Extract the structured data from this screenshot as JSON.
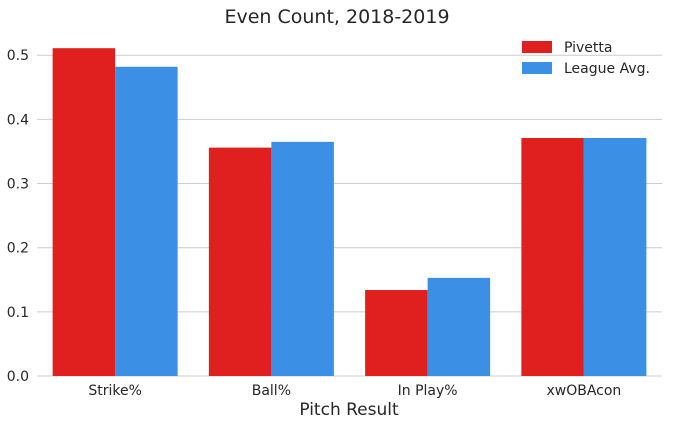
{
  "chart_data": {
    "type": "bar",
    "title": "Even Count, 2018-2019",
    "xlabel": "Pitch Result",
    "ylabel": "",
    "ylim": [
      0,
      0.53
    ],
    "yticks": [
      0.0,
      0.1,
      0.2,
      0.3,
      0.4,
      0.5
    ],
    "ytick_labels": [
      "0.0",
      "0.1",
      "0.2",
      "0.3",
      "0.4",
      "0.5"
    ],
    "grid": true,
    "legend_position": "top-right",
    "categories": [
      "Strike%",
      "Ball%",
      "In Play%",
      "xwOBAcon"
    ],
    "series": [
      {
        "name": "Pivetta",
        "color": "#e01f1f",
        "values": [
          0.511,
          0.356,
          0.134,
          0.371
        ]
      },
      {
        "name": "League Avg.",
        "color": "#3b8fe5",
        "values": [
          0.482,
          0.365,
          0.153,
          0.371
        ]
      }
    ]
  }
}
